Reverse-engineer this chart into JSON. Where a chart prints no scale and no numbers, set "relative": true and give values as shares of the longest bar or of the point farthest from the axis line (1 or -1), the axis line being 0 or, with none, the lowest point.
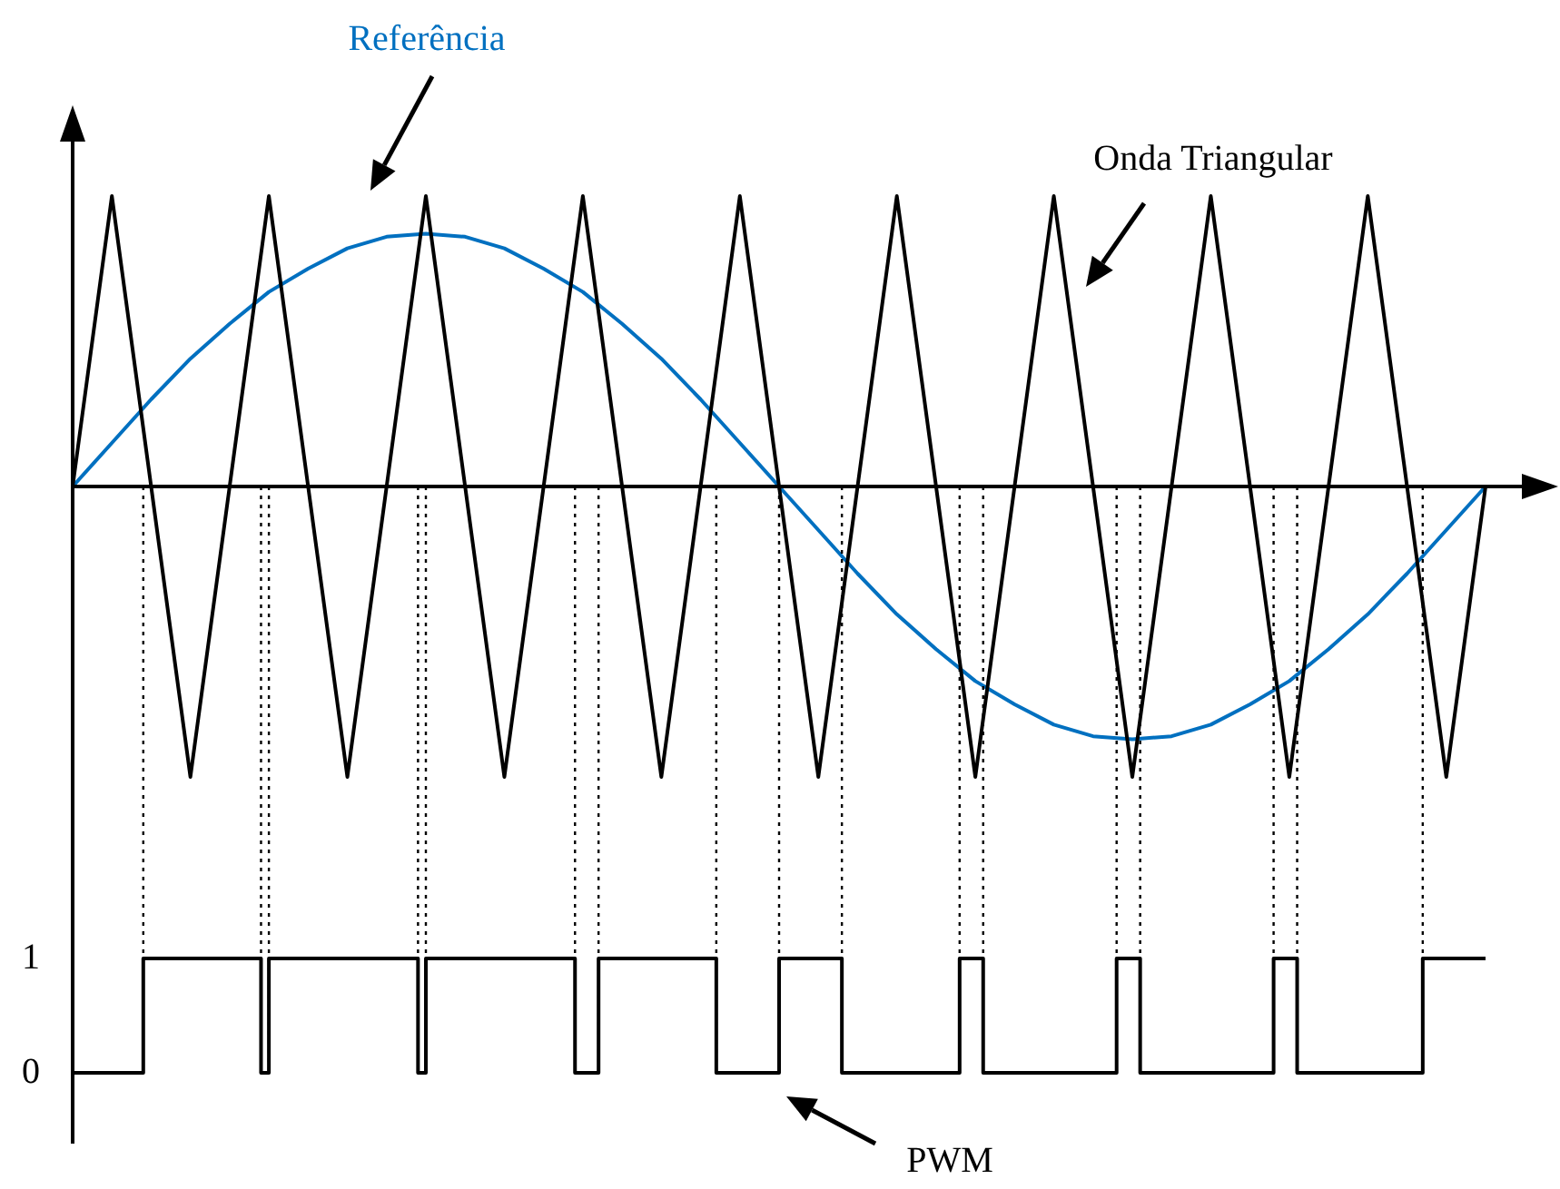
{
  "chart_data": [
    {
      "type": "line",
      "relative": true,
      "tick_labels": false,
      "categories": [
        null,
        null,
        null,
        null,
        null,
        null,
        null,
        null,
        null,
        null,
        null,
        null,
        null,
        null,
        null,
        null,
        null,
        null,
        null,
        null,
        null,
        null,
        null,
        null,
        null,
        null,
        null,
        null,
        null,
        null,
        null,
        null,
        null,
        null,
        null,
        null,
        null
      ],
      "series": [
        {
          "name": "Onda Triangular",
          "color": "#000000",
          "values": [
            0,
            1,
            0,
            -1,
            0,
            1,
            0,
            -1,
            0,
            1,
            0,
            -1,
            0,
            1,
            0,
            -1,
            0,
            1,
            0,
            -1,
            0,
            1,
            0,
            -1,
            0,
            1,
            0,
            -1,
            0,
            1,
            0,
            -1,
            0,
            1,
            0,
            -1,
            0
          ]
        },
        {
          "name": "Referência",
          "color": "#0070c0",
          "values": [
            0,
            0.15,
            0.3,
            0.44,
            0.56,
            0.67,
            0.75,
            0.82,
            0.86,
            0.87,
            0.86,
            0.82,
            0.75,
            0.67,
            0.56,
            0.44,
            0.3,
            0.15,
            0,
            -0.15,
            -0.3,
            -0.44,
            -0.56,
            -0.67,
            -0.75,
            -0.82,
            -0.86,
            -0.87,
            -0.86,
            -0.82,
            -0.75,
            -0.67,
            -0.56,
            -0.44,
            -0.3,
            -0.15,
            0
          ]
        }
      ]
    },
    {
      "type": "step",
      "tick_labels": "y",
      "ylim": [
        0,
        1
      ],
      "yticks": [
        0,
        1
      ],
      "categories": [
        null,
        null,
        null,
        null,
        null,
        null,
        null,
        null,
        null,
        null,
        null,
        null,
        null,
        null,
        null,
        null,
        null,
        null,
        null,
        null,
        null,
        null,
        null,
        null,
        null,
        null,
        null,
        null,
        null,
        null,
        null,
        null,
        null,
        null,
        null,
        null,
        null,
        null,
        null,
        null,
        null,
        null,
        null,
        null,
        null,
        null,
        null,
        null,
        null,
        null,
        null,
        null,
        null,
        null,
        null,
        null,
        null,
        null,
        null,
        null,
        null,
        null,
        null,
        null,
        null,
        null,
        null,
        null,
        null,
        null,
        null,
        null,
        null,
        null,
        null,
        null,
        null,
        null,
        null,
        null,
        null,
        null,
        null,
        null,
        null,
        null,
        null,
        null,
        null,
        null,
        null,
        null,
        null,
        null,
        null,
        null,
        null,
        null,
        null,
        null,
        null,
        null,
        null,
        null,
        null,
        null,
        null,
        null,
        null,
        null,
        null,
        null,
        null,
        null,
        null,
        null,
        null,
        null,
        null,
        null,
        null,
        null,
        null,
        null,
        null,
        null,
        null,
        null,
        null,
        null,
        null,
        null,
        null,
        null,
        null,
        null,
        null,
        null,
        null,
        null,
        null,
        null,
        null,
        null,
        null,
        null,
        null,
        null,
        null,
        null,
        null,
        null,
        null,
        null,
        null,
        null,
        null,
        null,
        null,
        null,
        null,
        null,
        null,
        null,
        null,
        null,
        null,
        null,
        null,
        null,
        null,
        null,
        null,
        null,
        null,
        null,
        null,
        null,
        null,
        null,
        null
      ],
      "series": [
        {
          "name": "PWM",
          "color": "#000000",
          "values": [
            0,
            0,
            0,
            0,
            0,
            0,
            0,
            0,
            0,
            1,
            1,
            1,
            1,
            1,
            1,
            1,
            1,
            1,
            1,
            1,
            1,
            1,
            1,
            1,
            0,
            1,
            1,
            1,
            1,
            1,
            1,
            1,
            1,
            1,
            1,
            1,
            1,
            1,
            1,
            1,
            1,
            1,
            1,
            1,
            0,
            1,
            1,
            1,
            1,
            1,
            1,
            1,
            1,
            1,
            1,
            1,
            1,
            1,
            1,
            1,
            1,
            1,
            1,
            1,
            0,
            0,
            0,
            1,
            1,
            1,
            1,
            1,
            1,
            1,
            1,
            1,
            1,
            1,
            1,
            1,
            1,
            1,
            0,
            0,
            0,
            0,
            0,
            0,
            0,
            0,
            1,
            1,
            1,
            1,
            1,
            1,
            1,
            1,
            0,
            0,
            0,
            0,
            0,
            0,
            0,
            0,
            0,
            0,
            0,
            0,
            0,
            0,
            0,
            1,
            1,
            1,
            0,
            0,
            0,
            0,
            0,
            0,
            0,
            0,
            0,
            0,
            0,
            0,
            0,
            0,
            0,
            0,
            0,
            1,
            1,
            1,
            0,
            0,
            0,
            0,
            0,
            0,
            0,
            0,
            0,
            0,
            0,
            0,
            0,
            0,
            0,
            0,
            0,
            1,
            1,
            1,
            0,
            0,
            0,
            0,
            0,
            0,
            0,
            0,
            0,
            0,
            0,
            0,
            0,
            0,
            0,
            0,
            1,
            1,
            1,
            1,
            1,
            1,
            1,
            1,
            1
          ]
        }
      ]
    }
  ]
}
